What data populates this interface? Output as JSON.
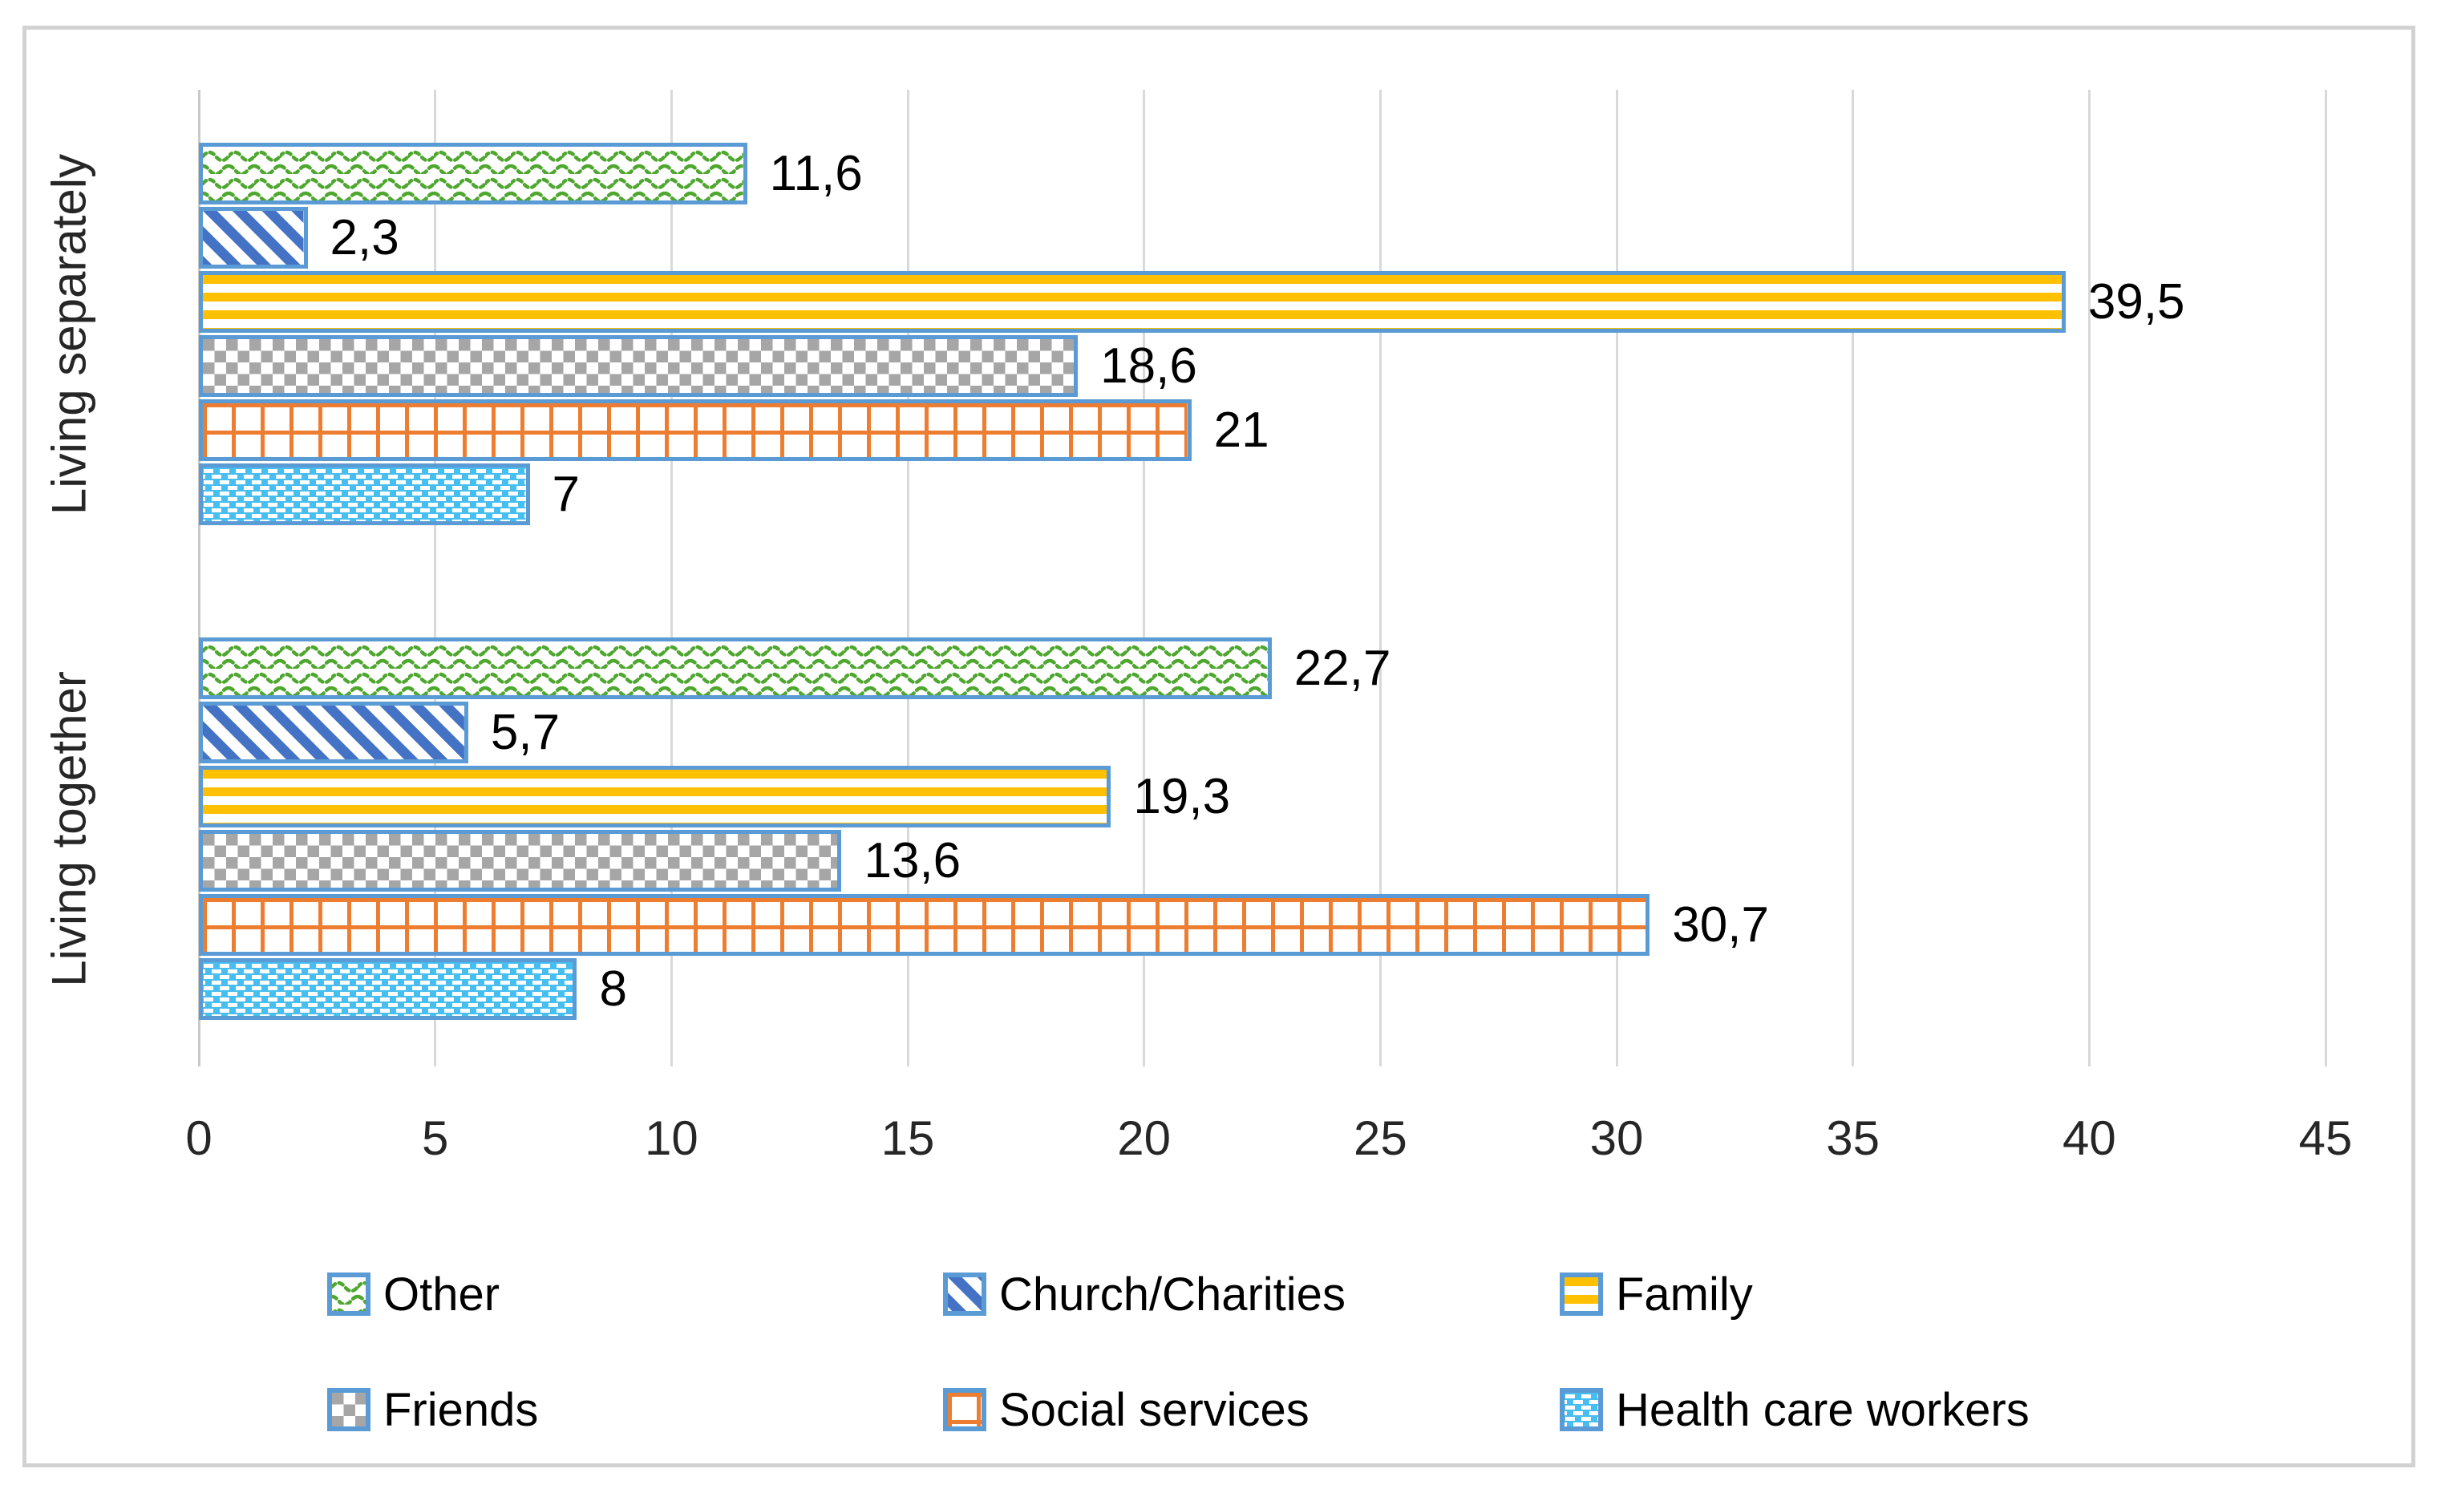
{
  "chart_data": {
    "type": "bar",
    "orientation": "horizontal",
    "title": "",
    "categories": [
      "Living separately",
      "Living together"
    ],
    "series": [
      {
        "name": "Other",
        "values": [
          11.6,
          22.7
        ],
        "labels": [
          "11,6",
          "22,7"
        ],
        "pattern": "green-waves",
        "color": "#4ea72e"
      },
      {
        "name": "Church/Charities",
        "values": [
          2.3,
          5.7
        ],
        "labels": [
          "2,3",
          "5,7"
        ],
        "pattern": "blue-diagonal",
        "color": "#4472c4"
      },
      {
        "name": "Family",
        "values": [
          39.5,
          19.3
        ],
        "labels": [
          "39,5",
          "19,3"
        ],
        "pattern": "yellow-hstripes",
        "color": "#ffc000"
      },
      {
        "name": "Friends",
        "values": [
          18.6,
          13.6
        ],
        "labels": [
          "18,6",
          "13,6"
        ],
        "pattern": "gray-checker",
        "color": "#a6a6a6"
      },
      {
        "name": "Social services",
        "values": [
          21,
          30.7
        ],
        "labels": [
          "21",
          "30,7"
        ],
        "pattern": "orange-grid",
        "color": "#ed7d31"
      },
      {
        "name": "Health care workers",
        "values": [
          7,
          8
        ],
        "labels": [
          "7",
          "8"
        ],
        "pattern": "blue-dashes",
        "color": "#47bef0"
      }
    ],
    "x_axis": {
      "min": 0,
      "max": 45,
      "step": 5,
      "ticks": [
        "0",
        "5",
        "10",
        "15",
        "20",
        "25",
        "30",
        "35",
        "40",
        "45"
      ]
    },
    "bar_border_color": "#5b9bd5",
    "gridline_color": "#d9d9d9",
    "frame_border_color": "#d2d2d2",
    "legend_position": "bottom",
    "grid": "vertical-only",
    "decimal_separator": ","
  }
}
